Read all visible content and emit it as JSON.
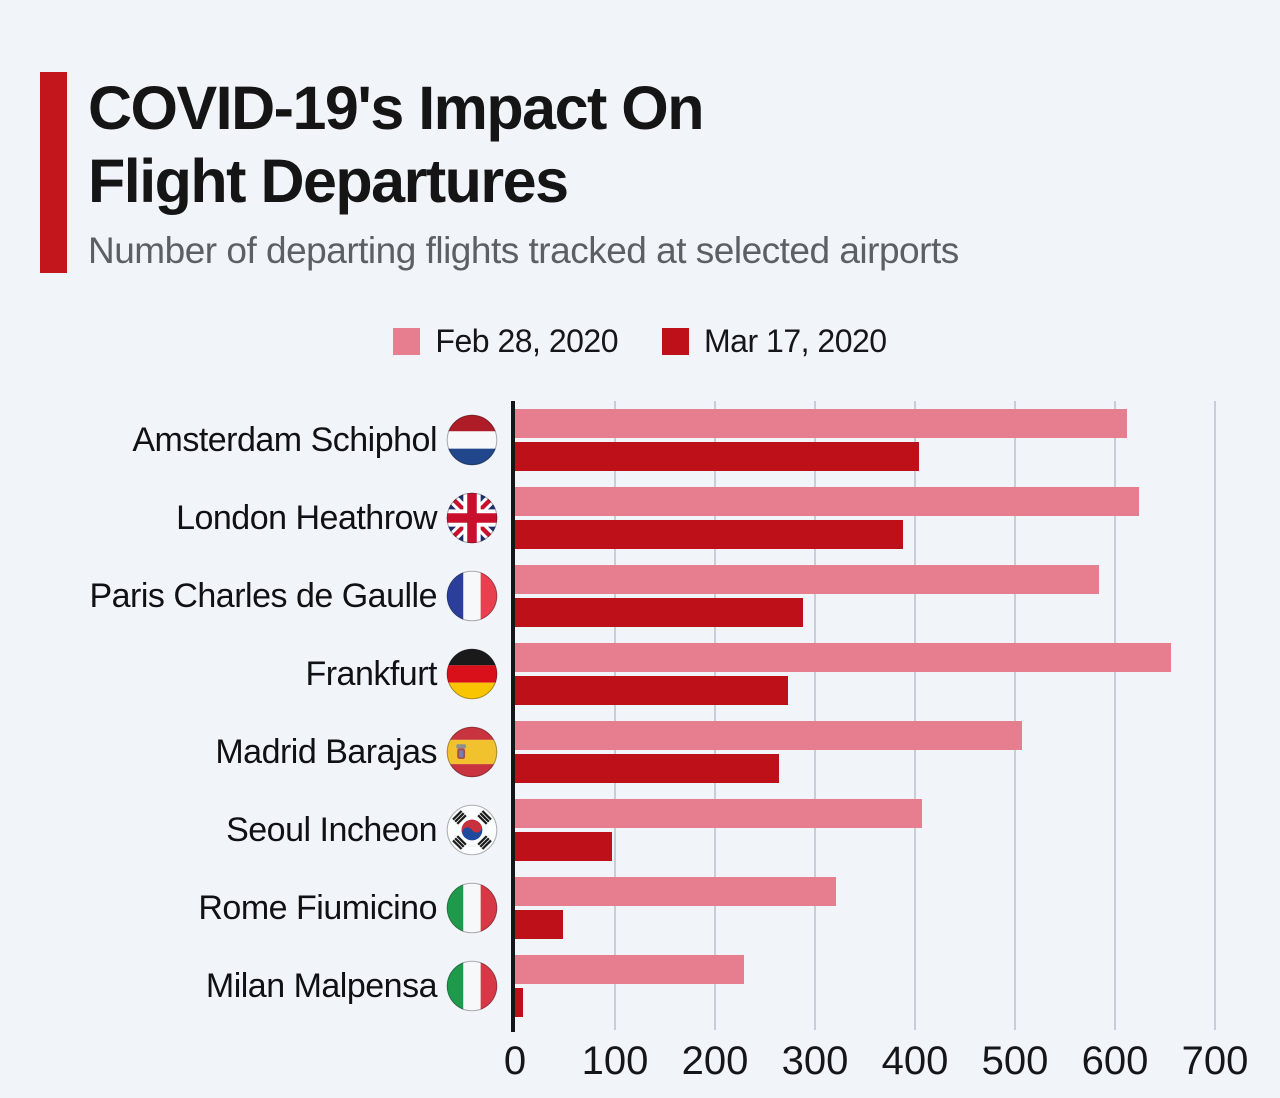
{
  "header": {
    "title_line1": "COVID-19's Impact On",
    "title_line2": "Flight Departures",
    "subtitle": "Number of departing flights tracked at selected airports"
  },
  "legend": {
    "items": [
      {
        "label": "Feb 28, 2020",
        "color_key": "pink"
      },
      {
        "label": "Mar 17, 2020",
        "color_key": "red"
      }
    ]
  },
  "colors": {
    "pink": "#E67E8F",
    "red": "#BE1019",
    "accent_bar": "#C3161C",
    "background": "#F1F4F9",
    "gridline": "#C8CDD6",
    "axis": "#15161A",
    "title_text": "#151515",
    "subtitle_text": "#5B6064"
  },
  "chart_data": {
    "type": "bar",
    "orientation": "horizontal",
    "title": "COVID-19's Impact On Flight Departures",
    "subtitle": "Number of departing flights tracked at selected airports",
    "categories": [
      "Amsterdam Schiphol",
      "London Heathrow",
      "Paris Charles de Gaulle",
      "Frankfurt",
      "Madrid Barajas",
      "Seoul Incheon",
      "Rome Fiumicino",
      "Milan Malpensa"
    ],
    "flag_icons": [
      "netherlands-flag-icon",
      "uk-flag-icon",
      "france-flag-icon",
      "germany-flag-icon",
      "spain-flag-icon",
      "south-korea-flag-icon",
      "italy-flag-icon",
      "italy-flag-icon"
    ],
    "series": [
      {
        "name": "Feb 28, 2020",
        "color_key": "pink",
        "values": [
          612,
          624,
          584,
          656,
          507,
          407,
          321,
          229
        ]
      },
      {
        "name": "Mar 17, 2020",
        "color_key": "red",
        "values": [
          404,
          388,
          288,
          273,
          264,
          97,
          48,
          8
        ]
      }
    ],
    "xlim": [
      0,
      700
    ],
    "x_ticks": [
      0,
      100,
      200,
      300,
      400,
      500,
      600,
      700
    ],
    "grid": "vertical-gridlines",
    "legend_position": "top"
  }
}
